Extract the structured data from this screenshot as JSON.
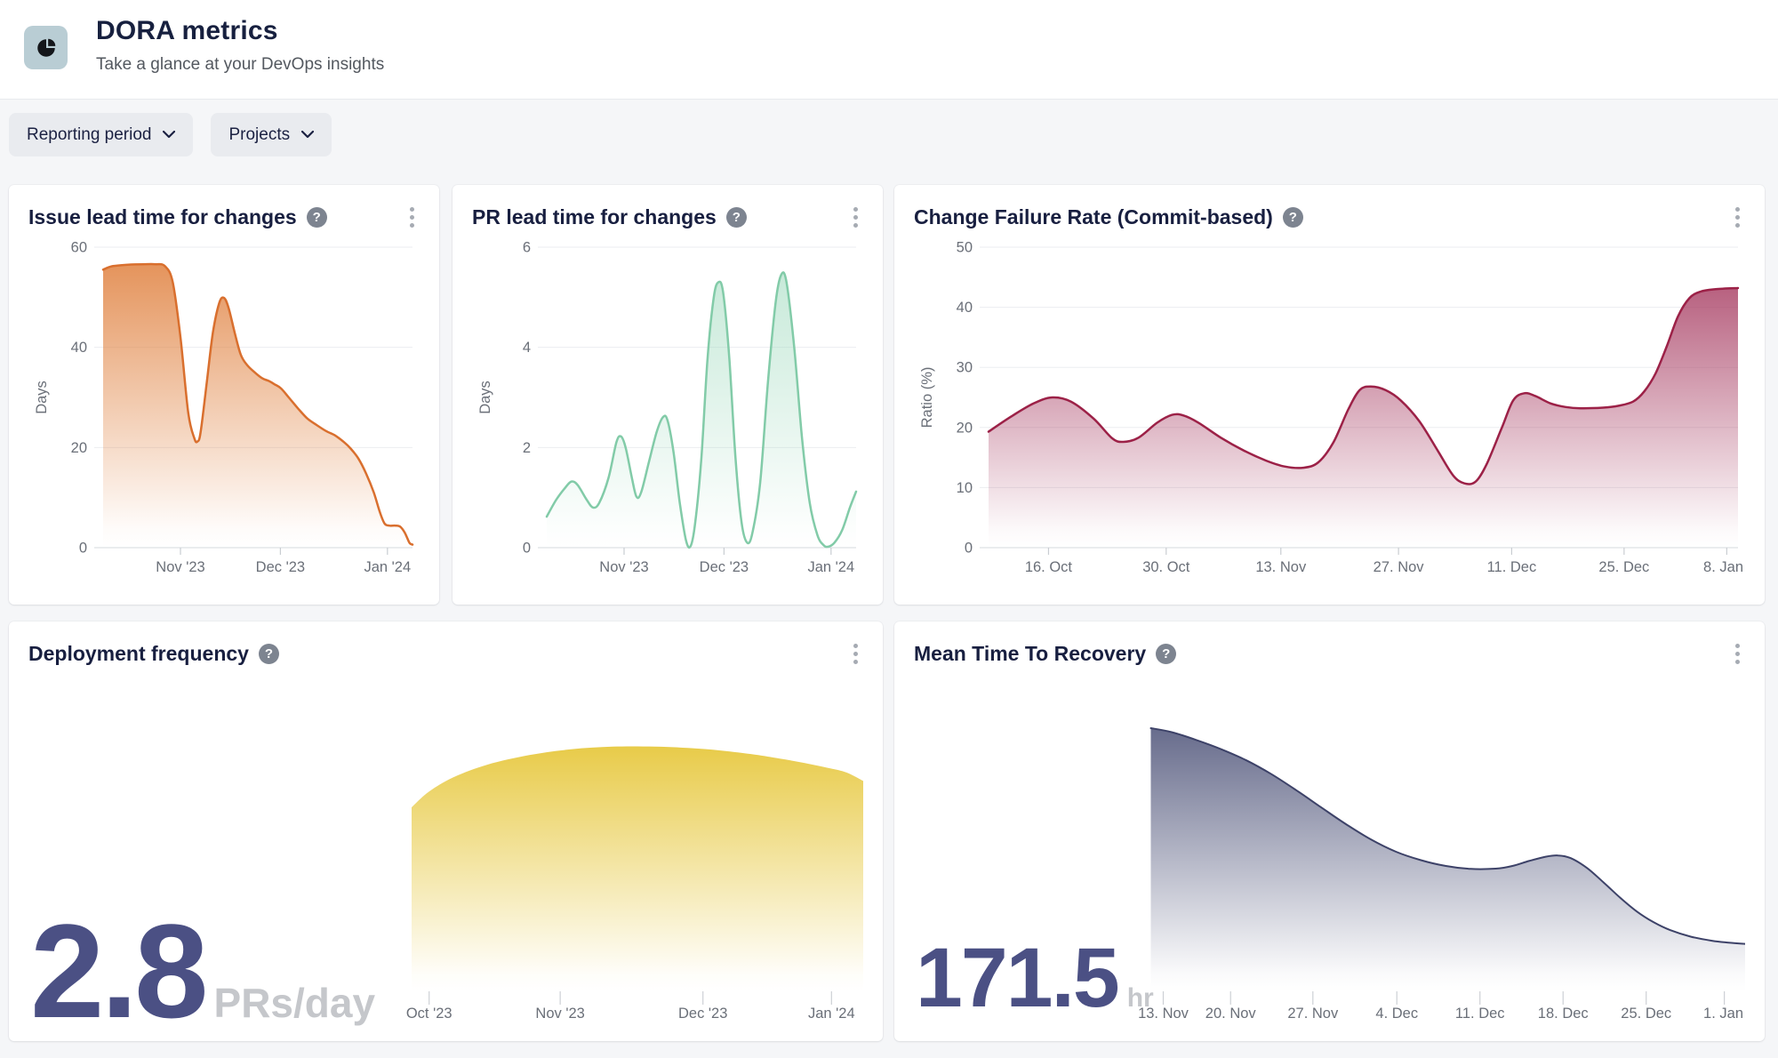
{
  "header": {
    "title": "DORA metrics",
    "subtitle": "Take a glance at your DevOps insights",
    "app_icon": "pie-chart-icon"
  },
  "icons": {
    "help_glyph": "?"
  },
  "colors": {
    "page_bg": "#f5f6f8",
    "card_bg": "#ffffff",
    "title_text": "#17203f",
    "issue_lead_accent": "#d96f2e",
    "pr_lead_accent": "#82cba8",
    "cfr_accent": "#9c2147",
    "deploy_accent": "#e8cb49",
    "mttr_accent": "#3d4268",
    "big_number": "#4b5084",
    "unit_text": "#c5c7cb"
  },
  "filters": [
    {
      "label": "Reporting period"
    },
    {
      "label": "Projects"
    }
  ],
  "cards": [
    {
      "title": "Issue lead time for changes"
    },
    {
      "title": "PR lead time for changes"
    },
    {
      "title": "Change Failure Rate (Commit-based)"
    },
    {
      "title": "Deployment frequency",
      "big_number": {
        "value": "2.8",
        "unit": "PRs/day"
      }
    },
    {
      "title": "Mean Time To Recovery",
      "big_number": {
        "value": "171.5",
        "unit": "hr"
      }
    }
  ],
  "chart_data": [
    {
      "type": "area",
      "title": "Issue lead time for changes",
      "ylabel": "Days",
      "y_axis": {
        "label": "Days",
        "ticks": [
          0,
          20,
          40,
          60
        ],
        "max": 60
      },
      "x_ticks": [
        {
          "label": "Nov '23",
          "f": 0.25
        },
        {
          "label": "Dec '23",
          "f": 0.573
        },
        {
          "label": "Jan '24",
          "f": 0.919
        }
      ],
      "stroke": "#d96f2e",
      "stroke_width": 2.5,
      "fill_top": "#e0813f",
      "fill_opacity": 0.85,
      "points": [
        [
          0,
          55.5
        ],
        [
          0.03,
          56.2
        ],
        [
          0.08,
          56.5
        ],
        [
          0.13,
          56.6
        ],
        [
          0.17,
          56.6
        ],
        [
          0.2,
          56.2
        ],
        [
          0.225,
          53
        ],
        [
          0.25,
          42
        ],
        [
          0.275,
          27
        ],
        [
          0.295,
          21.8
        ],
        [
          0.305,
          21.2
        ],
        [
          0.315,
          23
        ],
        [
          0.335,
          33
        ],
        [
          0.355,
          43
        ],
        [
          0.375,
          48.8
        ],
        [
          0.39,
          49.9
        ],
        [
          0.405,
          48
        ],
        [
          0.425,
          43
        ],
        [
          0.445,
          38.5
        ],
        [
          0.465,
          36.5
        ],
        [
          0.49,
          35
        ],
        [
          0.515,
          33.8
        ],
        [
          0.535,
          33.3
        ],
        [
          0.555,
          32.6
        ],
        [
          0.575,
          31.8
        ],
        [
          0.6,
          30
        ],
        [
          0.63,
          27.8
        ],
        [
          0.66,
          25.8
        ],
        [
          0.69,
          24.5
        ],
        [
          0.72,
          23.3
        ],
        [
          0.75,
          22.4
        ],
        [
          0.78,
          21
        ],
        [
          0.8,
          19.8
        ],
        [
          0.825,
          17.8
        ],
        [
          0.85,
          14.8
        ],
        [
          0.875,
          11
        ],
        [
          0.895,
          7
        ],
        [
          0.91,
          4.8
        ],
        [
          0.925,
          4.4
        ],
        [
          0.945,
          4.4
        ],
        [
          0.96,
          4.2
        ],
        [
          0.975,
          3
        ],
        [
          0.99,
          1
        ],
        [
          1,
          0.6
        ]
      ]
    },
    {
      "type": "area",
      "title": "PR lead time for changes",
      "ylabel": "Days",
      "y_axis": {
        "label": "Days",
        "ticks": [
          0,
          2,
          4,
          6
        ],
        "max": 6
      },
      "x_ticks": [
        {
          "label": "Nov '23",
          "f": 0.25
        },
        {
          "label": "Dec '23",
          "f": 0.573
        },
        {
          "label": "Jan '24",
          "f": 0.919
        }
      ],
      "stroke": "#82cba8",
      "stroke_width": 2.5,
      "fill_top": "#9ad8ba",
      "fill_opacity": 0.55,
      "points": [
        [
          0,
          0.62
        ],
        [
          0.03,
          0.95
        ],
        [
          0.06,
          1.2
        ],
        [
          0.08,
          1.32
        ],
        [
          0.1,
          1.25
        ],
        [
          0.13,
          0.95
        ],
        [
          0.15,
          0.8
        ],
        [
          0.17,
          0.9
        ],
        [
          0.2,
          1.4
        ],
        [
          0.225,
          2.1
        ],
        [
          0.24,
          2.22
        ],
        [
          0.255,
          2.0
        ],
        [
          0.275,
          1.4
        ],
        [
          0.29,
          1.02
        ],
        [
          0.305,
          1.1
        ],
        [
          0.33,
          1.7
        ],
        [
          0.355,
          2.3
        ],
        [
          0.375,
          2.6
        ],
        [
          0.39,
          2.55
        ],
        [
          0.41,
          1.9
        ],
        [
          0.43,
          0.9
        ],
        [
          0.45,
          0.15
        ],
        [
          0.465,
          0.03
        ],
        [
          0.48,
          0.5
        ],
        [
          0.5,
          1.8
        ],
        [
          0.52,
          3.8
        ],
        [
          0.54,
          5.0
        ],
        [
          0.555,
          5.3
        ],
        [
          0.57,
          5.1
        ],
        [
          0.59,
          3.8
        ],
        [
          0.61,
          1.8
        ],
        [
          0.63,
          0.5
        ],
        [
          0.648,
          0.1
        ],
        [
          0.665,
          0.3
        ],
        [
          0.69,
          1.3
        ],
        [
          0.715,
          3.3
        ],
        [
          0.74,
          4.9
        ],
        [
          0.758,
          5.45
        ],
        [
          0.775,
          5.3
        ],
        [
          0.8,
          4.0
        ],
        [
          0.825,
          2.2
        ],
        [
          0.85,
          0.9
        ],
        [
          0.875,
          0.25
        ],
        [
          0.895,
          0.05
        ],
        [
          0.91,
          0.02
        ],
        [
          0.93,
          0.1
        ],
        [
          0.955,
          0.35
        ],
        [
          0.98,
          0.8
        ],
        [
          1,
          1.12
        ]
      ]
    },
    {
      "type": "area",
      "title": "Change Failure Rate (Commit-based)",
      "ylabel": "Ratio (%)",
      "y_axis": {
        "label": "Ratio (%)",
        "ticks": [
          0,
          10,
          20,
          30,
          40,
          50
        ],
        "max": 50
      },
      "x_ticks": [
        {
          "label": "16. Oct",
          "f": 0.08
        },
        {
          "label": "30. Oct",
          "f": 0.237
        },
        {
          "label": "13. Nov",
          "f": 0.39
        },
        {
          "label": "27. Nov",
          "f": 0.547
        },
        {
          "label": "11. Dec",
          "f": 0.698
        },
        {
          "label": "25. Dec",
          "f": 0.848
        },
        {
          "label": "8. Jan",
          "f": 0.985
        }
      ],
      "stroke": "#9c2147",
      "stroke_width": 2.5,
      "fill_top": "#a63a60",
      "fill_opacity": 0.8,
      "points": [
        [
          0,
          19.3
        ],
        [
          0.03,
          21.8
        ],
        [
          0.06,
          24.0
        ],
        [
          0.085,
          25.0
        ],
        [
          0.11,
          24.3
        ],
        [
          0.14,
          21.5
        ],
        [
          0.165,
          18.2
        ],
        [
          0.18,
          17.6
        ],
        [
          0.2,
          18.3
        ],
        [
          0.225,
          20.8
        ],
        [
          0.245,
          22.1
        ],
        [
          0.26,
          22.0
        ],
        [
          0.28,
          20.8
        ],
        [
          0.31,
          18.3
        ],
        [
          0.34,
          16.2
        ],
        [
          0.37,
          14.5
        ],
        [
          0.395,
          13.5
        ],
        [
          0.42,
          13.3
        ],
        [
          0.44,
          14.2
        ],
        [
          0.46,
          17.5
        ],
        [
          0.48,
          23.0
        ],
        [
          0.495,
          26.2
        ],
        [
          0.51,
          26.8
        ],
        [
          0.53,
          26.2
        ],
        [
          0.55,
          24.5
        ],
        [
          0.575,
          21.0
        ],
        [
          0.6,
          16.0
        ],
        [
          0.62,
          12.0
        ],
        [
          0.635,
          10.7
        ],
        [
          0.65,
          11.0
        ],
        [
          0.665,
          14.0
        ],
        [
          0.685,
          20.0
        ],
        [
          0.7,
          24.5
        ],
        [
          0.715,
          25.7
        ],
        [
          0.73,
          25.2
        ],
        [
          0.75,
          24.0
        ],
        [
          0.77,
          23.4
        ],
        [
          0.79,
          23.2
        ],
        [
          0.82,
          23.3
        ],
        [
          0.84,
          23.6
        ],
        [
          0.86,
          24.3
        ],
        [
          0.875,
          26.0
        ],
        [
          0.89,
          29.0
        ],
        [
          0.905,
          33.5
        ],
        [
          0.92,
          38.5
        ],
        [
          0.935,
          41.5
        ],
        [
          0.95,
          42.6
        ],
        [
          0.97,
          43.0
        ],
        [
          1,
          43.2
        ]
      ]
    },
    {
      "type": "area",
      "title": "Deployment frequency",
      "summary_value": "2.8 PRs/day",
      "y_axis": null,
      "x_ticks": [
        {
          "label": "Oct '23",
          "f": 0.48
        },
        {
          "label": "Nov '23",
          "f": 0.637
        },
        {
          "label": "Dec '23",
          "f": 0.808
        },
        {
          "label": "Jan '24",
          "f": 0.962
        }
      ],
      "stroke": "#e8cb49",
      "stroke_width": 0,
      "fill_top": "#e8cb49",
      "fill_opacity": 1,
      "points": [
        [
          0.459,
          0.7
        ],
        [
          0.48,
          0.76
        ],
        [
          0.51,
          0.815
        ],
        [
          0.55,
          0.862
        ],
        [
          0.6,
          0.898
        ],
        [
          0.65,
          0.92
        ],
        [
          0.7,
          0.93
        ],
        [
          0.75,
          0.93
        ],
        [
          0.79,
          0.925
        ],
        [
          0.83,
          0.915
        ],
        [
          0.87,
          0.9
        ],
        [
          0.9,
          0.885
        ],
        [
          0.93,
          0.868
        ],
        [
          0.96,
          0.848
        ],
        [
          0.98,
          0.832
        ],
        [
          1,
          0.8
        ]
      ]
    },
    {
      "type": "area",
      "title": "Mean Time To Recovery",
      "summary_value": "171.5 hr",
      "y_axis": null,
      "x_ticks": [
        {
          "label": "13. Nov",
          "f": 0.3
        },
        {
          "label": "20. Nov",
          "f": 0.381
        },
        {
          "label": "27. Nov",
          "f": 0.48
        },
        {
          "label": "4. Dec",
          "f": 0.581
        },
        {
          "label": "11. Dec",
          "f": 0.681
        },
        {
          "label": "18. Dec",
          "f": 0.781
        },
        {
          "label": "25. Dec",
          "f": 0.881
        },
        {
          "label": "1. Jan",
          "f": 0.975
        }
      ],
      "stroke": "#3d4268",
      "stroke_width": 2,
      "fill_top": "#5a5f82",
      "fill_opacity": 0.92,
      "points": [
        [
          0.285,
          1.0
        ],
        [
          0.31,
          0.985
        ],
        [
          0.34,
          0.955
        ],
        [
          0.37,
          0.92
        ],
        [
          0.4,
          0.878
        ],
        [
          0.43,
          0.826
        ],
        [
          0.46,
          0.765
        ],
        [
          0.49,
          0.7
        ],
        [
          0.52,
          0.636
        ],
        [
          0.55,
          0.578
        ],
        [
          0.58,
          0.532
        ],
        [
          0.61,
          0.5
        ],
        [
          0.64,
          0.478
        ],
        [
          0.67,
          0.467
        ],
        [
          0.7,
          0.468
        ],
        [
          0.72,
          0.478
        ],
        [
          0.74,
          0.497
        ],
        [
          0.76,
          0.513
        ],
        [
          0.775,
          0.518
        ],
        [
          0.79,
          0.508
        ],
        [
          0.81,
          0.47
        ],
        [
          0.83,
          0.415
        ],
        [
          0.85,
          0.357
        ],
        [
          0.87,
          0.305
        ],
        [
          0.89,
          0.265
        ],
        [
          0.91,
          0.235
        ],
        [
          0.935,
          0.21
        ],
        [
          0.96,
          0.195
        ],
        [
          0.98,
          0.188
        ],
        [
          1,
          0.183
        ]
      ]
    }
  ]
}
